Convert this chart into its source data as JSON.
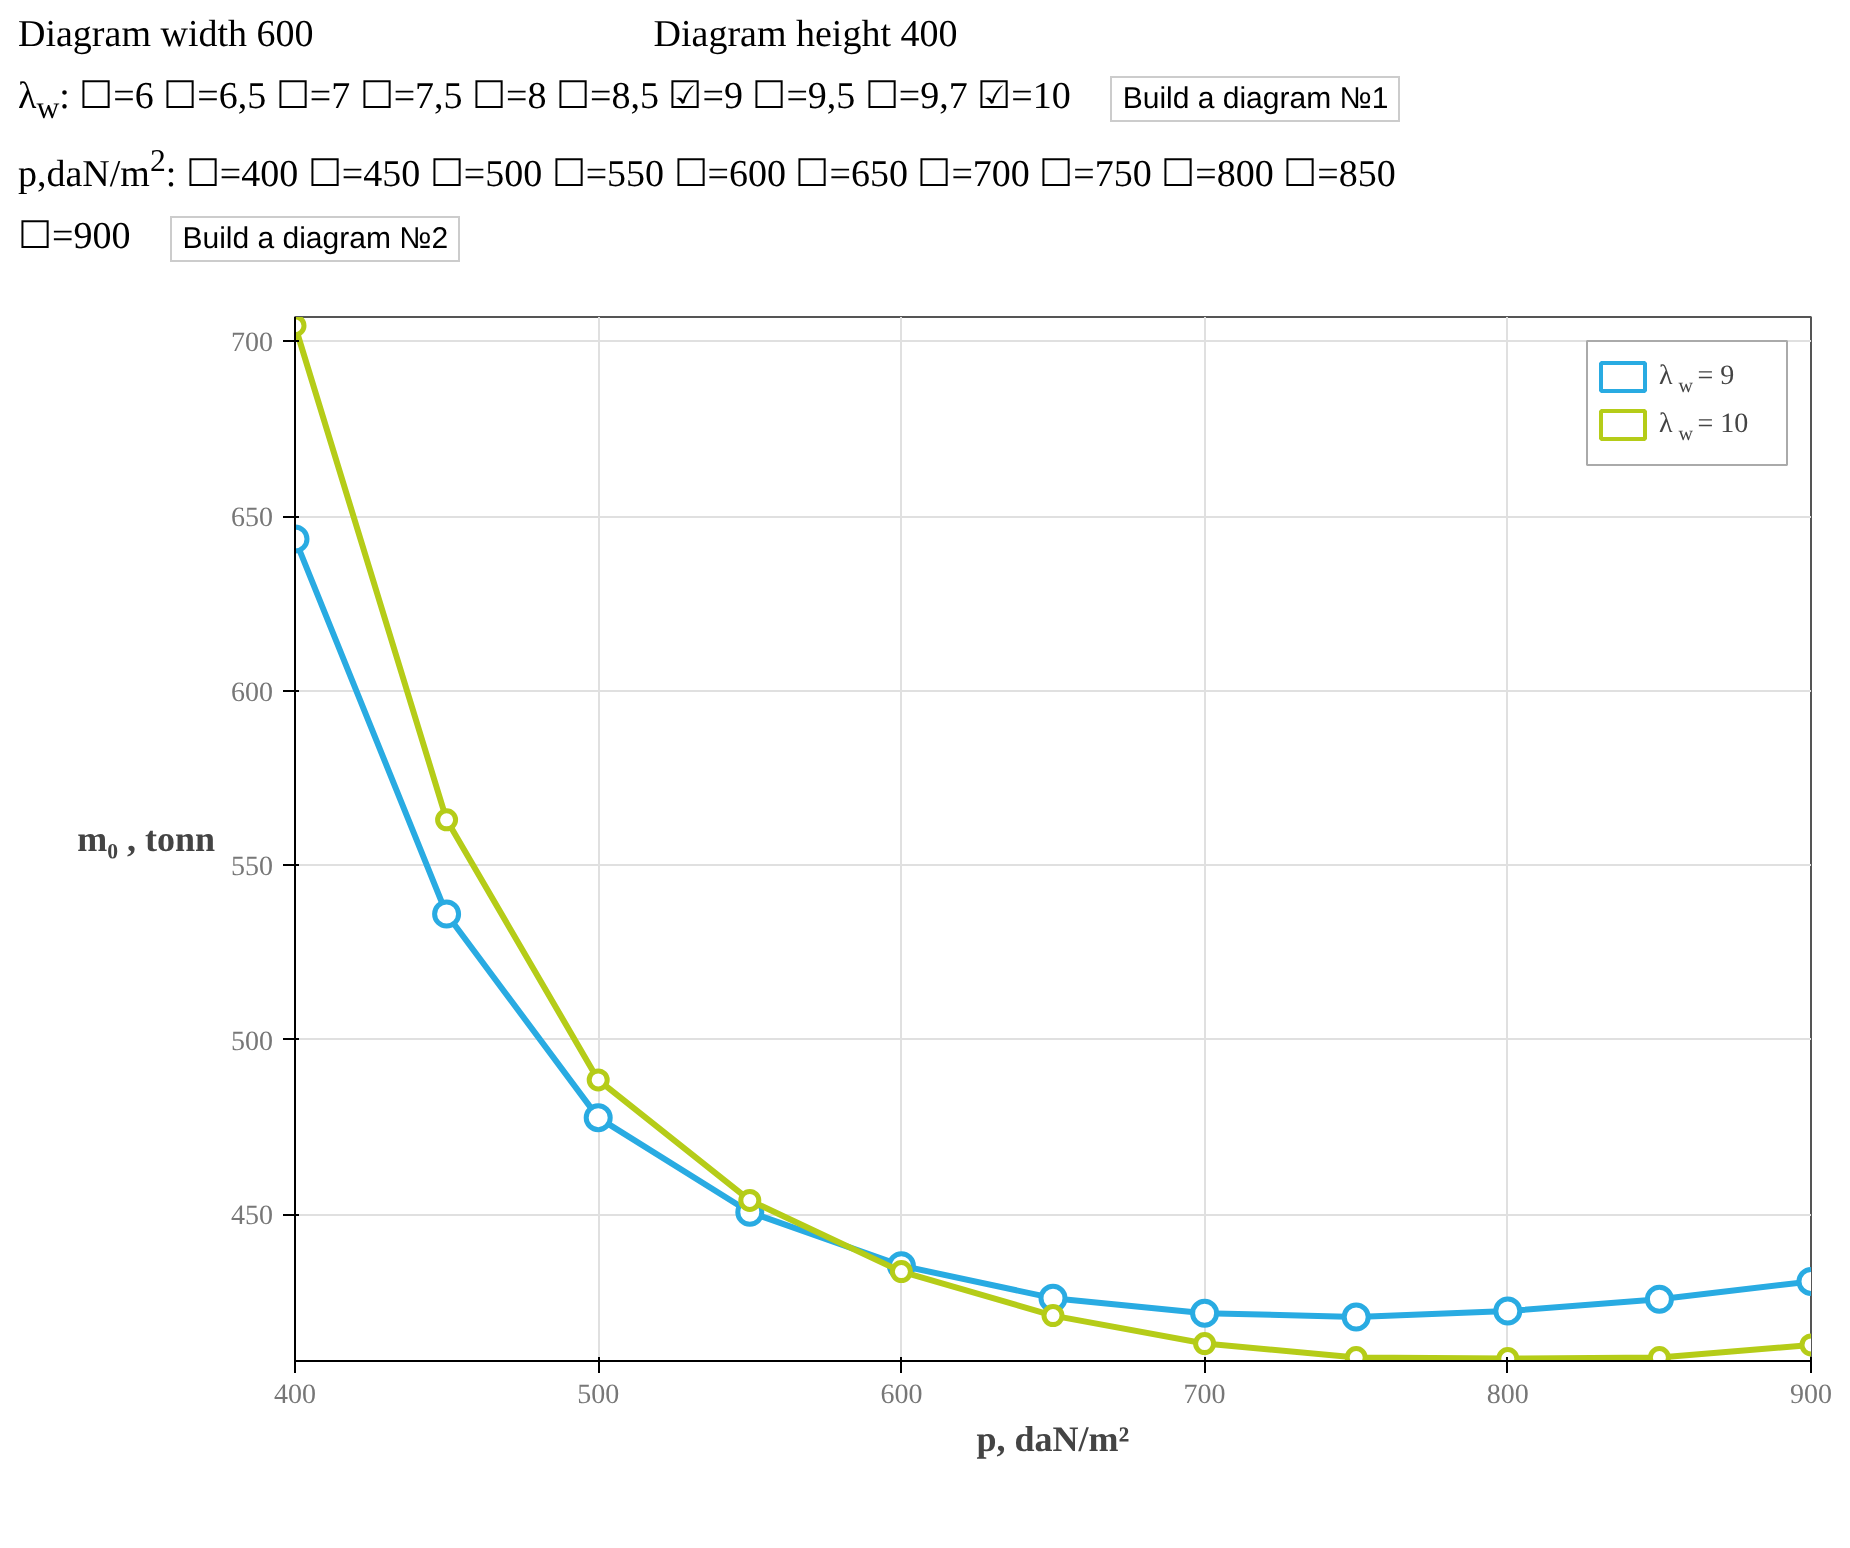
{
  "chart_data": {
    "type": "line",
    "xlabel": "p, daN/m²",
    "ylabel": "m₀ , tonn",
    "x": [
      400,
      450,
      500,
      550,
      600,
      650,
      700,
      750,
      800,
      850,
      900
    ],
    "series": [
      {
        "name": "λ$_{w}$ = 9",
        "color": "#29abe2",
        "values": [
          643.4,
          536,
          477.7,
          450.6,
          435.3,
          426,
          421.7,
          420.6,
          422.3,
          425.7,
          430.8
        ]
      },
      {
        "name": "λ$_{w}$ = 10",
        "color": "#b5cc18",
        "values": [
          704.5,
          563,
          488.5,
          454,
          433.6,
          421,
          413,
          409,
          408.7,
          409,
          412.6
        ]
      }
    ],
    "xlim": [
      400,
      900
    ],
    "ylim": [
      408,
      707
    ],
    "xticks": [
      400,
      500,
      600,
      700,
      800,
      900
    ],
    "yticks": [
      450,
      500,
      550,
      600,
      650,
      700
    ],
    "grid": true,
    "legend": "top right",
    "marker": "circle",
    "line_style": "solid",
    "annotations": [
      "Diagram width 600",
      "Diagram height 400",
      "λ$_{w}$: ☐=6 ☐=6,5 ☐=7 ☐=7,5 ☐=8 ☐=8,5 ☑=9 ☐=9,5 ☐=9,7 ☑=10",
      "Build a diagram №1",
      "p,daN/m$^{2}$: ☐=400 ☐=450 ☐=500 ☐=550 ☐=600 ☐=650 ☐=700 ☐=750 ☐=800 ☐=850",
      "☐=900",
      "Build a diagram №2"
    ]
  }
}
